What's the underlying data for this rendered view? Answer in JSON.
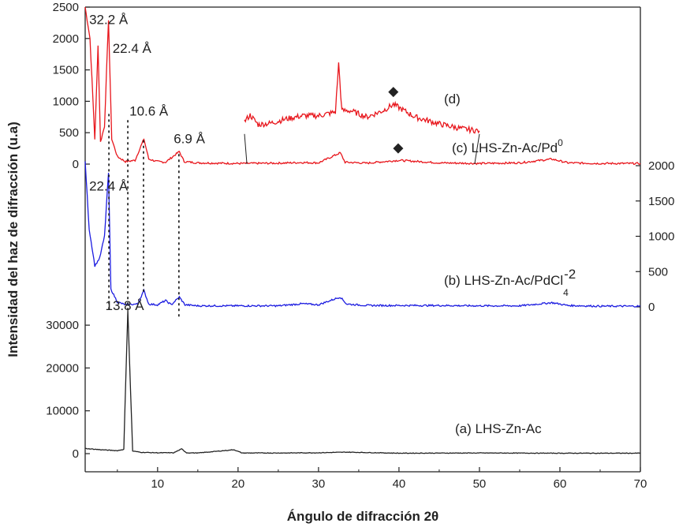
{
  "chart_data": {
    "type": "line",
    "title": "",
    "xlabel": "Ángulo de difracción 2θ",
    "ylabel": "Intensidad del haz de difracción (u.a)",
    "xlim": [
      1,
      70
    ],
    "x_ticks": [
      10,
      20,
      30,
      40,
      50,
      60,
      70
    ],
    "grid": false,
    "legend": "none",
    "panels": {
      "top": {
        "axis_side": "left",
        "ylim": [
          0,
          2500
        ],
        "ticks": [
          0,
          500,
          1000,
          1500,
          2000,
          2500
        ]
      },
      "middle": {
        "axis_side": "right",
        "ylim": [
          0,
          2000
        ],
        "ticks": [
          0,
          500,
          1000,
          1500,
          2000
        ]
      },
      "bottom": {
        "axis_side": "left",
        "ylim": [
          0,
          35000
        ],
        "ticks": [
          0,
          10000,
          20000,
          30000
        ]
      }
    },
    "series": [
      {
        "label": "(c) LHS-Zn-Ac/Pd",
        "superscript": "0",
        "panel": "top",
        "color": "#e8161c",
        "points": [
          [
            1,
            2500
          ],
          [
            1.6,
            2000
          ],
          [
            2.2,
            400
          ],
          [
            2.6,
            1900
          ],
          [
            2.9,
            350
          ],
          [
            3.4,
            600
          ],
          [
            3.9,
            2300
          ],
          [
            4.3,
            400
          ],
          [
            5,
            120
          ],
          [
            6,
            40
          ],
          [
            7.2,
            60
          ],
          [
            8.3,
            400
          ],
          [
            8.9,
            80
          ],
          [
            10,
            40
          ],
          [
            11,
            30
          ],
          [
            12.7,
            200
          ],
          [
            13.3,
            40
          ],
          [
            15,
            20
          ],
          [
            20,
            10
          ],
          [
            25,
            15
          ],
          [
            28,
            25
          ],
          [
            30,
            20
          ],
          [
            32.7,
            180
          ],
          [
            33.3,
            30
          ],
          [
            36,
            15
          ],
          [
            40,
            60
          ],
          [
            45,
            20
          ],
          [
            50,
            10
          ],
          [
            55,
            20
          ],
          [
            59,
            80
          ],
          [
            61,
            20
          ],
          [
            65,
            10
          ],
          [
            70,
            10
          ]
        ]
      },
      {
        "label": "(d)",
        "panel": "top",
        "color": "#e8161c",
        "points": [
          [
            20.8,
            680
          ],
          [
            21.5,
            780
          ],
          [
            22.5,
            630
          ],
          [
            24,
            650
          ],
          [
            26,
            720
          ],
          [
            28,
            770
          ],
          [
            30,
            770
          ],
          [
            32.1,
            830
          ],
          [
            32.5,
            1600
          ],
          [
            32.9,
            850
          ],
          [
            34,
            850
          ],
          [
            36,
            750
          ],
          [
            38,
            850
          ],
          [
            39.3,
            950
          ],
          [
            40,
            900
          ],
          [
            42,
            750
          ],
          [
            45,
            640
          ],
          [
            48,
            560
          ],
          [
            50,
            530
          ]
        ]
      },
      {
        "label": "(b) LHS-Zn-Ac/PdCl",
        "subscript": "4",
        "superscript": "-2",
        "panel": "middle",
        "color": "#1c1ce0",
        "points": [
          [
            1,
            2050
          ],
          [
            1.5,
            1100
          ],
          [
            2.2,
            580
          ],
          [
            2.8,
            690
          ],
          [
            3.4,
            1000
          ],
          [
            3.9,
            1900
          ],
          [
            4.2,
            250
          ],
          [
            5,
            70
          ],
          [
            6,
            30
          ],
          [
            7.5,
            40
          ],
          [
            8.3,
            230
          ],
          [
            8.9,
            40
          ],
          [
            10,
            30
          ],
          [
            11,
            90
          ],
          [
            11.7,
            30
          ],
          [
            12.7,
            140
          ],
          [
            13.4,
            30
          ],
          [
            15,
            15
          ],
          [
            20,
            15
          ],
          [
            25,
            15
          ],
          [
            28,
            45
          ],
          [
            30,
            30
          ],
          [
            32.7,
            140
          ],
          [
            33.5,
            40
          ],
          [
            36,
            20
          ],
          [
            40,
            20
          ],
          [
            45,
            20
          ],
          [
            50,
            15
          ],
          [
            55,
            15
          ],
          [
            59,
            60
          ],
          [
            61,
            20
          ],
          [
            65,
            10
          ],
          [
            70,
            10
          ]
        ]
      },
      {
        "label": "(a) LHS-Zn-Ac",
        "panel": "bottom",
        "color": "#222222",
        "points": [
          [
            1,
            1200
          ],
          [
            3,
            900
          ],
          [
            5,
            700
          ],
          [
            5.8,
            1000
          ],
          [
            6.3,
            33500
          ],
          [
            6.9,
            600
          ],
          [
            8,
            300
          ],
          [
            10,
            200
          ],
          [
            12,
            200
          ],
          [
            13,
            1100
          ],
          [
            13.6,
            200
          ],
          [
            15,
            150
          ],
          [
            19.5,
            900
          ],
          [
            20.5,
            150
          ],
          [
            25,
            150
          ],
          [
            30,
            200
          ],
          [
            33.5,
            350
          ],
          [
            40,
            100
          ],
          [
            50,
            150
          ],
          [
            60,
            100
          ],
          [
            70,
            100
          ]
        ]
      }
    ],
    "annotations": [
      {
        "text": "32.2 Å",
        "x": 1.5,
        "panel": "top",
        "y": 2230
      },
      {
        "text": "22.4 Å",
        "x": 4.4,
        "panel": "top",
        "y": 1770
      },
      {
        "text": "10.6 Å",
        "x": 6.5,
        "panel": "top",
        "y": 770
      },
      {
        "text": "6.9 Å",
        "x": 12,
        "panel": "top",
        "y": 330
      },
      {
        "text": "22.4 Å",
        "x": 1.5,
        "panel": "middle",
        "y": 1650
      },
      {
        "text": "13.8 Å",
        "x": 3.5,
        "panel": "bottom",
        "y": 33500
      }
    ],
    "markers": [
      {
        "symbol": "◆",
        "x": 39.3,
        "panel": "top",
        "y": 1170
      },
      {
        "symbol": "◆",
        "x": 39.9,
        "panel": "top",
        "y": 270
      }
    ],
    "reference_lines": [
      {
        "x": 3.95,
        "from": {
          "panel": "top",
          "y": 800
        },
        "to": {
          "panel": "bottom",
          "y": 33000
        }
      },
      {
        "x": 6.3,
        "from": {
          "panel": "top",
          "y": 700
        },
        "to": {
          "panel": "bottom",
          "y": 33000
        }
      },
      {
        "x": 8.25,
        "from": {
          "panel": "top",
          "y": 380
        },
        "to": {
          "panel": "middle",
          "y": 200
        }
      },
      {
        "x": 12.65,
        "from": {
          "panel": "top",
          "y": 160
        },
        "to": {
          "panel": "bottom",
          "y": 32000
        }
      }
    ],
    "zoom_connectors": [
      {
        "from": {
          "x": 20.8,
          "panel": "top",
          "y": 480
        },
        "to": {
          "x": 21.1,
          "panel": "top",
          "y": 0
        }
      },
      {
        "from": {
          "x": 50,
          "panel": "top",
          "y": 480
        },
        "to": {
          "x": 49.4,
          "panel": "top",
          "y": 0
        }
      }
    ]
  }
}
